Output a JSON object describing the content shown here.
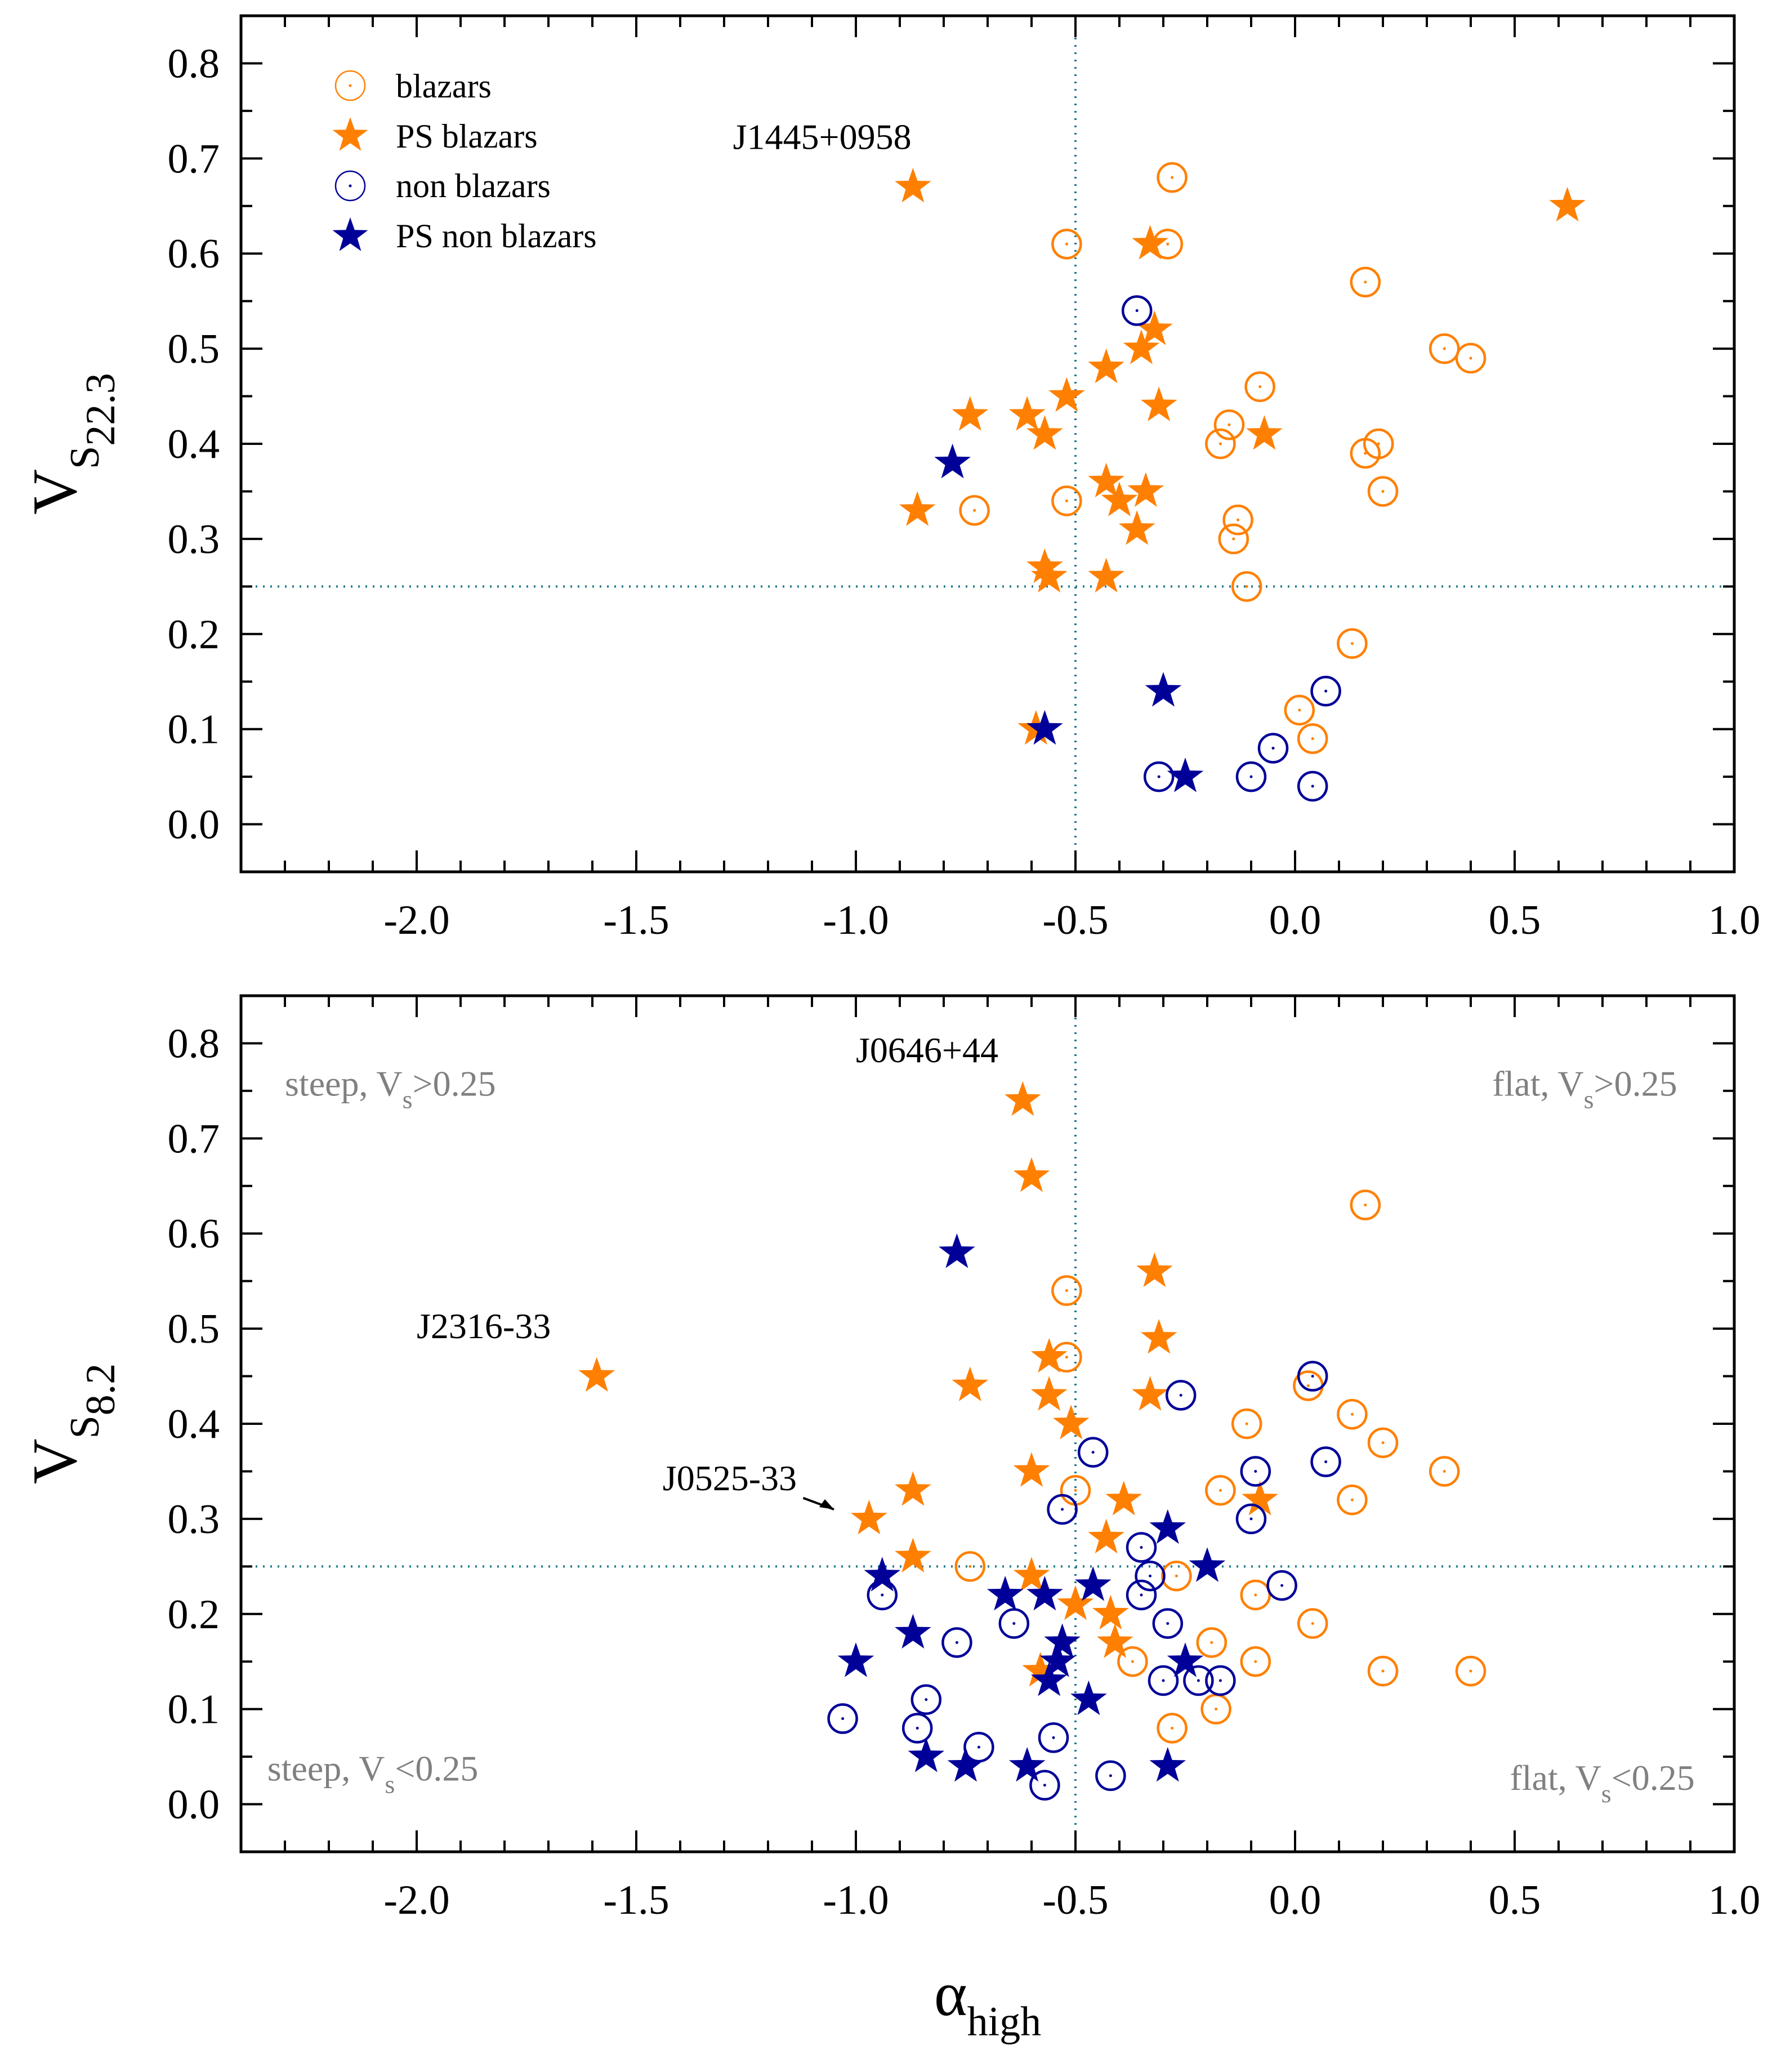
{
  "colors": {
    "blazar": "#ff8000",
    "non_blazar": "#000099",
    "guide": "#1f7a8c",
    "region_text": "#808080"
  },
  "legend": {
    "blazars": "blazars",
    "ps_blazars": "PS blazars",
    "non_blazars": "non blazars",
    "ps_non_blazars": "PS non blazars"
  },
  "chart_data": [
    {
      "type": "scatter",
      "panel": "top",
      "ylabel": "V",
      "ylabel_sub": "S 22.3",
      "xlim": [
        -2.4,
        1.0
      ],
      "ylim": [
        -0.05,
        0.85
      ],
      "xticks": [
        -2.0,
        -1.5,
        -1.0,
        -0.5,
        0.0,
        0.5,
        1.0
      ],
      "xtick_labels": [
        "-2.0",
        "-1.5",
        "-1.0",
        "-0.5",
        "0.0",
        "0.5",
        "1.0"
      ],
      "yticks": [
        0.0,
        0.1,
        0.2,
        0.3,
        0.4,
        0.5,
        0.6,
        0.7,
        0.8
      ],
      "ytick_labels": [
        "0.0",
        "0.1",
        "0.2",
        "0.3",
        "0.4",
        "0.5",
        "0.6",
        "0.7",
        "0.8"
      ],
      "threshold_x": -0.5,
      "threshold_y": 0.25,
      "annotations": [
        {
          "text": "J1445+0958",
          "x": -1.28,
          "y": 0.71
        }
      ],
      "series": [
        {
          "name": "blazars",
          "marker": "circle",
          "points": [
            [
              -0.52,
              0.61
            ],
            [
              -0.28,
              0.68
            ],
            [
              -0.29,
              0.61
            ],
            [
              0.16,
              0.57
            ],
            [
              0.34,
              0.5
            ],
            [
              0.4,
              0.49
            ],
            [
              -0.08,
              0.46
            ],
            [
              -0.15,
              0.42
            ],
            [
              -0.17,
              0.4
            ],
            [
              0.19,
              0.4
            ],
            [
              0.16,
              0.39
            ],
            [
              0.2,
              0.35
            ],
            [
              -0.73,
              0.33
            ],
            [
              -0.52,
              0.34
            ],
            [
              -0.13,
              0.32
            ],
            [
              -0.14,
              0.3
            ],
            [
              -0.11,
              0.25
            ],
            [
              0.13,
              0.19
            ],
            [
              0.01,
              0.12
            ],
            [
              0.04,
              0.09
            ]
          ]
        },
        {
          "name": "PS blazars",
          "marker": "star",
          "points": [
            [
              -0.87,
              0.67
            ],
            [
              0.62,
              0.65
            ],
            [
              -0.33,
              0.61
            ],
            [
              -0.32,
              0.52
            ],
            [
              -0.35,
              0.5
            ],
            [
              -0.43,
              0.48
            ],
            [
              -0.52,
              0.45
            ],
            [
              -0.31,
              0.44
            ],
            [
              -0.74,
              0.43
            ],
            [
              -0.61,
              0.43
            ],
            [
              -0.57,
              0.41
            ],
            [
              -0.07,
              0.41
            ],
            [
              -0.86,
              0.33
            ],
            [
              -0.43,
              0.36
            ],
            [
              -0.4,
              0.34
            ],
            [
              -0.34,
              0.35
            ],
            [
              -0.36,
              0.31
            ],
            [
              -0.57,
              0.27
            ],
            [
              -0.56,
              0.26
            ],
            [
              -0.43,
              0.26
            ],
            [
              -0.59,
              0.1
            ]
          ]
        },
        {
          "name": "non blazars",
          "marker": "circle",
          "points": [
            [
              -0.36,
              0.54
            ],
            [
              -0.05,
              0.08
            ],
            [
              0.07,
              0.14
            ],
            [
              -0.31,
              0.05
            ],
            [
              -0.1,
              0.05
            ],
            [
              0.04,
              0.04
            ]
          ]
        },
        {
          "name": "PS non blazars",
          "marker": "star",
          "points": [
            [
              -0.78,
              0.38
            ],
            [
              -0.3,
              0.14
            ],
            [
              -0.57,
              0.1
            ],
            [
              -0.25,
              0.05
            ]
          ]
        }
      ]
    },
    {
      "type": "scatter",
      "panel": "bottom",
      "xlabel": "α",
      "xlabel_sub": "high",
      "ylabel": "V",
      "ylabel_sub": "S 8.2",
      "xlim": [
        -2.4,
        1.0
      ],
      "ylim": [
        -0.05,
        0.85
      ],
      "xticks": [
        -2.0,
        -1.5,
        -1.0,
        -0.5,
        0.0,
        0.5,
        1.0
      ],
      "xtick_labels": [
        "-2.0",
        "-1.5",
        "-1.0",
        "-0.5",
        "0.0",
        "0.5",
        "1.0"
      ],
      "yticks": [
        0.0,
        0.1,
        0.2,
        0.3,
        0.4,
        0.5,
        0.6,
        0.7,
        0.8
      ],
      "ytick_labels": [
        "0.0",
        "0.1",
        "0.2",
        "0.3",
        "0.4",
        "0.5",
        "0.6",
        "0.7",
        "0.8"
      ],
      "threshold_x": -0.5,
      "threshold_y": 0.25,
      "annotations": [
        {
          "text": "J0646+44",
          "x": -1.0,
          "y": 0.78
        },
        {
          "text": "J2316-33",
          "x": -2.0,
          "y": 0.49
        },
        {
          "text": "J0525-33",
          "x": -1.44,
          "y": 0.33
        }
      ],
      "region_labels": {
        "top_left": "steep, V",
        "top_left_rel": ">0.25",
        "top_right": "flat, V",
        "top_right_rel": ">0.25",
        "bottom_left": "steep, V",
        "bottom_left_rel": "<0.25",
        "bottom_right": "flat, V",
        "bottom_right_rel": "<0.25",
        "sub": "s"
      },
      "series": [
        {
          "name": "blazars",
          "marker": "circle",
          "points": [
            [
              0.16,
              0.63
            ],
            [
              -0.52,
              0.54
            ],
            [
              -0.52,
              0.47
            ],
            [
              0.03,
              0.44
            ],
            [
              0.13,
              0.41
            ],
            [
              0.2,
              0.38
            ],
            [
              -0.11,
              0.4
            ],
            [
              0.34,
              0.35
            ],
            [
              0.13,
              0.32
            ],
            [
              -0.17,
              0.33
            ],
            [
              -0.74,
              0.25
            ],
            [
              -0.27,
              0.24
            ],
            [
              -0.09,
              0.22
            ],
            [
              0.04,
              0.19
            ],
            [
              -0.19,
              0.17
            ],
            [
              -0.09,
              0.15
            ],
            [
              -0.37,
              0.15
            ],
            [
              0.2,
              0.14
            ],
            [
              0.4,
              0.14
            ],
            [
              -0.28,
              0.08
            ],
            [
              -0.18,
              0.1
            ],
            [
              -0.5,
              0.33
            ]
          ]
        },
        {
          "name": "PS blazars",
          "marker": "star",
          "points": [
            [
              -0.62,
              0.74
            ],
            [
              -0.6,
              0.66
            ],
            [
              -0.32,
              0.56
            ],
            [
              -0.31,
              0.49
            ],
            [
              -1.59,
              0.45
            ],
            [
              -0.56,
              0.47
            ],
            [
              -0.74,
              0.44
            ],
            [
              -0.56,
              0.43
            ],
            [
              -0.33,
              0.43
            ],
            [
              -0.51,
              0.4
            ],
            [
              -0.6,
              0.35
            ],
            [
              -0.39,
              0.32
            ],
            [
              -0.08,
              0.32
            ],
            [
              -0.97,
              0.3
            ],
            [
              -0.87,
              0.33
            ],
            [
              -0.87,
              0.26
            ],
            [
              -0.6,
              0.24
            ],
            [
              -0.43,
              0.28
            ],
            [
              -0.5,
              0.21
            ],
            [
              -0.42,
              0.2
            ],
            [
              -0.41,
              0.17
            ],
            [
              -0.58,
              0.14
            ]
          ]
        },
        {
          "name": "non blazars",
          "marker": "circle",
          "points": [
            [
              0.04,
              0.45
            ],
            [
              -0.26,
              0.43
            ],
            [
              -0.46,
              0.37
            ],
            [
              -0.09,
              0.35
            ],
            [
              0.07,
              0.36
            ],
            [
              -0.53,
              0.31
            ],
            [
              -0.1,
              0.3
            ],
            [
              -0.35,
              0.27
            ],
            [
              -0.33,
              0.24
            ],
            [
              -0.03,
              0.23
            ],
            [
              -0.94,
              0.22
            ],
            [
              -0.35,
              0.22
            ],
            [
              -0.29,
              0.19
            ],
            [
              -0.64,
              0.19
            ],
            [
              -0.77,
              0.17
            ],
            [
              -0.22,
              0.13
            ],
            [
              -0.17,
              0.13
            ],
            [
              -0.3,
              0.13
            ],
            [
              -0.84,
              0.11
            ],
            [
              -1.03,
              0.09
            ],
            [
              -0.55,
              0.07
            ],
            [
              -0.86,
              0.08
            ],
            [
              -0.72,
              0.06
            ],
            [
              -0.57,
              0.02
            ],
            [
              -0.42,
              0.03
            ]
          ]
        },
        {
          "name": "PS non blazars",
          "marker": "star",
          "points": [
            [
              -0.77,
              0.58
            ],
            [
              -0.29,
              0.29
            ],
            [
              -0.2,
              0.25
            ],
            [
              -0.94,
              0.24
            ],
            [
              -0.66,
              0.22
            ],
            [
              -0.57,
              0.22
            ],
            [
              -0.46,
              0.23
            ],
            [
              -0.87,
              0.18
            ],
            [
              -1.0,
              0.15
            ],
            [
              -0.53,
              0.17
            ],
            [
              -0.54,
              0.15
            ],
            [
              -0.25,
              0.15
            ],
            [
              -0.56,
              0.13
            ],
            [
              -0.47,
              0.11
            ],
            [
              -0.84,
              0.05
            ],
            [
              -0.75,
              0.04
            ],
            [
              -0.61,
              0.04
            ],
            [
              -0.29,
              0.04
            ]
          ]
        }
      ]
    }
  ]
}
